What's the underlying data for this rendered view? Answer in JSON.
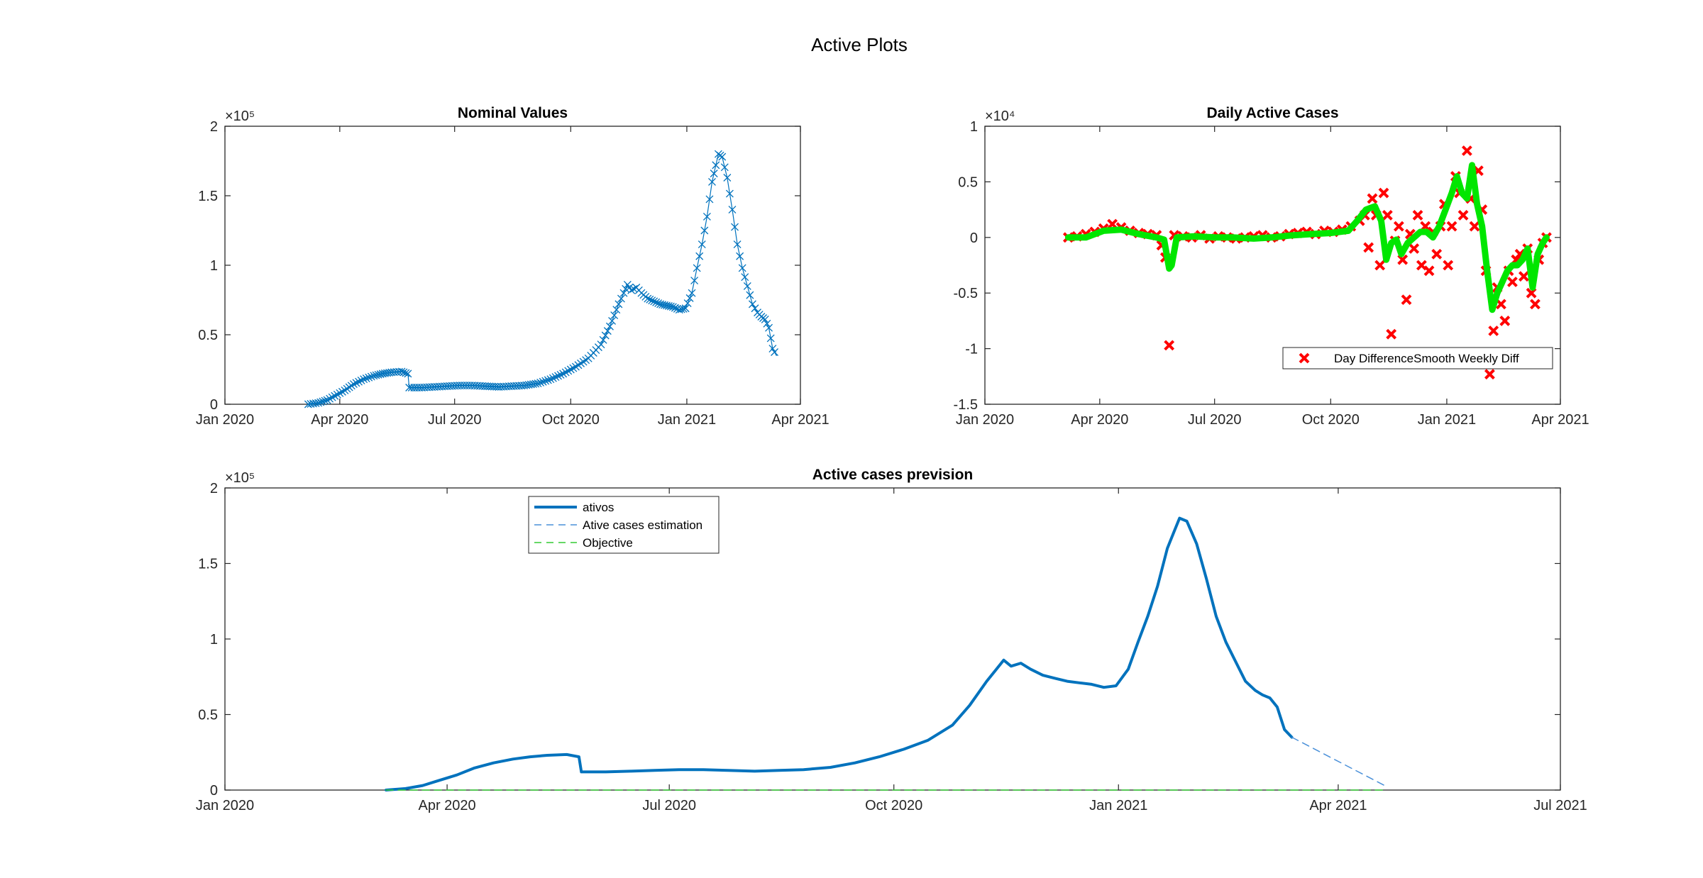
{
  "figure_title": "Active Plots",
  "chart_data": [
    {
      "type": "line",
      "marker": "x",
      "title": "Nominal Values",
      "xlabel": "",
      "ylabel": "",
      "xlim": [
        "2020-01-01",
        "2021-04-01"
      ],
      "ylim": [
        0,
        200000
      ],
      "x_ticks": [
        "2020-01-01",
        "2020-04-01",
        "2020-07-01",
        "2020-10-01",
        "2021-01-01",
        "2021-04-01"
      ],
      "x_tick_labels": [
        "Jan 2020",
        "Apr 2020",
        "Jul 2020",
        "Oct 2020",
        "Jan 2021",
        "Apr 2021"
      ],
      "y_ticks": [
        0,
        50000,
        100000,
        150000,
        200000
      ],
      "y_tick_labels": [
        "0",
        "0.5",
        "1",
        "1.5",
        "2"
      ],
      "y_exponent_label": "×10⁵",
      "grid": false,
      "color": "#0072BD",
      "series": [
        {
          "x": [
            "2020-03-07",
            "2020-03-15",
            "2020-03-22",
            "2020-03-28",
            "2020-04-05",
            "2020-04-12",
            "2020-04-20",
            "2020-04-28",
            "2020-05-05",
            "2020-05-12",
            "2020-05-20",
            "2020-05-25",
            "2020-05-26",
            "2020-06-05",
            "2020-06-15",
            "2020-06-25",
            "2020-07-05",
            "2020-07-15",
            "2020-07-25",
            "2020-08-05",
            "2020-08-15",
            "2020-08-25",
            "2020-09-05",
            "2020-09-15",
            "2020-09-25",
            "2020-10-05",
            "2020-10-15",
            "2020-10-25",
            "2020-11-01",
            "2020-11-08",
            "2020-11-12",
            "2020-11-15",
            "2020-11-18",
            "2020-11-22",
            "2020-11-26",
            "2020-12-01",
            "2020-12-06",
            "2020-12-11",
            "2020-12-16",
            "2020-12-21",
            "2020-12-26",
            "2020-12-31",
            "2021-01-05",
            "2021-01-09",
            "2021-01-13",
            "2021-01-17",
            "2021-01-21",
            "2021-01-24",
            "2021-01-26",
            "2021-01-29",
            "2021-02-02",
            "2021-02-06",
            "2021-02-10",
            "2021-02-14",
            "2021-02-18",
            "2021-02-22",
            "2021-02-26",
            "2021-03-01",
            "2021-03-04",
            "2021-03-07",
            "2021-03-10",
            "2021-03-13"
          ],
          "y": [
            0,
            1000,
            3000,
            6000,
            10000,
            14500,
            18000,
            20500,
            22000,
            23000,
            23500,
            22000,
            12000,
            12000,
            12500,
            13000,
            13500,
            13500,
            13000,
            12500,
            13000,
            13500,
            15000,
            18000,
            22000,
            27000,
            33000,
            43000,
            56000,
            72000,
            80000,
            86000,
            82000,
            84000,
            80000,
            76000,
            74000,
            72000,
            71000,
            70000,
            68000,
            69000,
            80000,
            98000,
            115000,
            135000,
            160000,
            172000,
            180000,
            178000,
            163000,
            140000,
            115000,
            98000,
            85000,
            72000,
            66000,
            63000,
            61000,
            55000,
            40000,
            35000
          ]
        }
      ]
    },
    {
      "type": "scatter",
      "title": "Daily Active Cases",
      "xlabel": "",
      "ylabel": "",
      "xlim": [
        "2020-01-01",
        "2021-04-01"
      ],
      "ylim": [
        -15000,
        10000
      ],
      "x_ticks": [
        "2020-01-01",
        "2020-04-01",
        "2020-07-01",
        "2020-10-01",
        "2021-01-01",
        "2021-04-01"
      ],
      "x_tick_labels": [
        "Jan 2020",
        "Apr 2020",
        "Jul 2020",
        "Oct 2020",
        "Jan 2021",
        "Apr 2021"
      ],
      "y_ticks": [
        -15000,
        -10000,
        -5000,
        0,
        5000,
        10000
      ],
      "y_tick_labels": [
        "-1.5",
        "-1",
        "-0.5",
        "0",
        "0.5",
        "1"
      ],
      "y_exponent_label": "×10⁴",
      "grid": false,
      "legend": {
        "position": "bottom-right",
        "entries": [
          "Day Difference",
          "Smooth Weekly Diff"
        ]
      },
      "series": [
        {
          "name": "Day Difference",
          "color": "#FF0000",
          "marker": "x",
          "x": [
            "2020-03-07",
            "2020-03-14",
            "2020-03-21",
            "2020-03-28",
            "2020-04-04",
            "2020-04-11",
            "2020-04-18",
            "2020-04-25",
            "2020-05-02",
            "2020-05-09",
            "2020-05-16",
            "2020-05-20",
            "2020-05-23",
            "2020-05-26",
            "2020-05-30",
            "2020-06-06",
            "2020-06-13",
            "2020-06-20",
            "2020-06-27",
            "2020-07-04",
            "2020-07-11",
            "2020-07-18",
            "2020-07-25",
            "2020-08-01",
            "2020-08-08",
            "2020-08-15",
            "2020-08-22",
            "2020-08-29",
            "2020-09-05",
            "2020-09-12",
            "2020-09-19",
            "2020-09-26",
            "2020-10-03",
            "2020-10-10",
            "2020-10-17",
            "2020-10-24",
            "2020-10-28",
            "2020-10-31",
            "2020-11-03",
            "2020-11-06",
            "2020-11-09",
            "2020-11-12",
            "2020-11-15",
            "2020-11-18",
            "2020-11-21",
            "2020-11-24",
            "2020-11-27",
            "2020-11-30",
            "2020-12-03",
            "2020-12-06",
            "2020-12-09",
            "2020-12-12",
            "2020-12-15",
            "2020-12-18",
            "2020-12-21",
            "2020-12-24",
            "2020-12-27",
            "2020-12-30",
            "2021-01-02",
            "2021-01-05",
            "2021-01-08",
            "2021-01-11",
            "2021-01-14",
            "2021-01-17",
            "2021-01-20",
            "2021-01-23",
            "2021-01-26",
            "2021-01-29",
            "2021-02-01",
            "2021-02-04",
            "2021-02-07",
            "2021-02-10",
            "2021-02-13",
            "2021-02-16",
            "2021-02-19",
            "2021-02-22",
            "2021-02-25",
            "2021-02-28",
            "2021-03-03",
            "2021-03-06",
            "2021-03-09",
            "2021-03-12",
            "2021-03-15",
            "2021-03-18",
            "2021-03-21"
          ],
          "y": [
            0,
            100,
            300,
            500,
            800,
            1200,
            900,
            600,
            400,
            300,
            200,
            -700,
            -1800,
            -9700,
            200,
            100,
            0,
            200,
            -100,
            100,
            0,
            -100,
            0,
            100,
            200,
            0,
            100,
            300,
            400,
            500,
            300,
            600,
            500,
            700,
            1000,
            1500,
            2000,
            -900,
            3500,
            2000,
            -2500,
            4000,
            2000,
            -8700,
            -300,
            1000,
            -2000,
            -5600,
            300,
            -1000,
            2000,
            -2500,
            1000,
            -3000,
            500,
            -1500,
            1000,
            3000,
            -2500,
            1000,
            5500,
            4000,
            2000,
            7800,
            3500,
            1000,
            6000,
            2500,
            -3000,
            -12300,
            -8400,
            -4500,
            -6000,
            -7500,
            -3000,
            -4000,
            -2000,
            -1500,
            -3500,
            -1000,
            -5000,
            -6000,
            -2000,
            -500,
            0
          ]
        },
        {
          "name": "Smooth Weekly Diff",
          "color": "#00E600",
          "x": [
            "2020-03-07",
            "2020-03-21",
            "2020-04-04",
            "2020-04-18",
            "2020-05-02",
            "2020-05-16",
            "2020-05-22",
            "2020-05-24",
            "2020-05-26",
            "2020-05-28",
            "2020-06-01",
            "2020-06-15",
            "2020-07-01",
            "2020-07-15",
            "2020-08-01",
            "2020-08-15",
            "2020-09-01",
            "2020-09-15",
            "2020-10-01",
            "2020-10-15",
            "2020-10-22",
            "2020-10-29",
            "2020-11-05",
            "2020-11-10",
            "2020-11-14",
            "2020-11-18",
            "2020-11-22",
            "2020-11-26",
            "2020-12-01",
            "2020-12-06",
            "2020-12-11",
            "2020-12-16",
            "2020-12-21",
            "2020-12-26",
            "2020-12-31",
            "2021-01-05",
            "2021-01-09",
            "2021-01-13",
            "2021-01-17",
            "2021-01-21",
            "2021-01-25",
            "2021-01-29",
            "2021-02-02",
            "2021-02-06",
            "2021-02-10",
            "2021-02-14",
            "2021-02-18",
            "2021-02-22",
            "2021-02-26",
            "2021-03-02",
            "2021-03-06",
            "2021-03-10",
            "2021-03-14",
            "2021-03-18",
            "2021-03-21"
          ],
          "y": [
            0,
            0,
            600,
            700,
            300,
            0,
            -200,
            -1500,
            -2800,
            -2500,
            0,
            100,
            0,
            0,
            -100,
            0,
            200,
            300,
            400,
            600,
            1500,
            2500,
            2800,
            1500,
            -2000,
            -500,
            -200,
            -1500,
            -500,
            0,
            500,
            500,
            0,
            1000,
            2500,
            4000,
            5500,
            4000,
            3500,
            6500,
            3000,
            1000,
            -3000,
            -6500,
            -5000,
            -4000,
            -3000,
            -2500,
            -2500,
            -2000,
            -1000,
            -4500,
            -1500,
            -500,
            0
          ]
        }
      ]
    },
    {
      "type": "line",
      "title": "Active cases prevision",
      "xlabel": "",
      "ylabel": "",
      "xlim": [
        "2020-01-01",
        "2021-07-01"
      ],
      "ylim": [
        0,
        200000
      ],
      "x_ticks": [
        "2020-01-01",
        "2020-04-01",
        "2020-07-01",
        "2020-10-01",
        "2021-01-01",
        "2021-04-01",
        "2021-07-01"
      ],
      "x_tick_labels": [
        "Jan 2020",
        "Apr 2020",
        "Jul 2020",
        "Oct 2020",
        "Jan 2021",
        "Apr 2021",
        "Jul 2021"
      ],
      "y_ticks": [
        0,
        50000,
        100000,
        150000,
        200000
      ],
      "y_tick_labels": [
        "0",
        "0.5",
        "1",
        "1.5",
        "2"
      ],
      "y_exponent_label": "×10⁵",
      "grid": false,
      "legend": {
        "position": "top-left",
        "entries": [
          "ativos",
          "Ative cases estimation",
          "Objective"
        ]
      },
      "series": [
        {
          "name": "ativos",
          "color": "#0072BD",
          "style": "solid",
          "x": [
            "2020-03-07",
            "2020-03-15",
            "2020-03-22",
            "2020-03-28",
            "2020-04-05",
            "2020-04-12",
            "2020-04-20",
            "2020-04-28",
            "2020-05-05",
            "2020-05-12",
            "2020-05-20",
            "2020-05-25",
            "2020-05-26",
            "2020-06-05",
            "2020-06-15",
            "2020-06-25",
            "2020-07-05",
            "2020-07-15",
            "2020-07-25",
            "2020-08-05",
            "2020-08-15",
            "2020-08-25",
            "2020-09-05",
            "2020-09-15",
            "2020-09-25",
            "2020-10-05",
            "2020-10-15",
            "2020-10-25",
            "2020-11-01",
            "2020-11-08",
            "2020-11-12",
            "2020-11-15",
            "2020-11-18",
            "2020-11-22",
            "2020-11-26",
            "2020-12-01",
            "2020-12-06",
            "2020-12-11",
            "2020-12-16",
            "2020-12-21",
            "2020-12-26",
            "2020-12-31",
            "2021-01-05",
            "2021-01-09",
            "2021-01-13",
            "2021-01-17",
            "2021-01-21",
            "2021-01-24",
            "2021-01-26",
            "2021-01-29",
            "2021-02-02",
            "2021-02-06",
            "2021-02-10",
            "2021-02-14",
            "2021-02-18",
            "2021-02-22",
            "2021-02-26",
            "2021-03-01",
            "2021-03-04",
            "2021-03-07",
            "2021-03-10",
            "2021-03-13"
          ],
          "y": [
            0,
            1000,
            3000,
            6000,
            10000,
            14500,
            18000,
            20500,
            22000,
            23000,
            23500,
            22000,
            12000,
            12000,
            12500,
            13000,
            13500,
            13500,
            13000,
            12500,
            13000,
            13500,
            15000,
            18000,
            22000,
            27000,
            33000,
            43000,
            56000,
            72000,
            80000,
            86000,
            82000,
            84000,
            80000,
            76000,
            74000,
            72000,
            71000,
            70000,
            68000,
            69000,
            80000,
            98000,
            115000,
            135000,
            160000,
            172000,
            180000,
            178000,
            163000,
            140000,
            115000,
            98000,
            85000,
            72000,
            66000,
            63000,
            61000,
            55000,
            40000,
            35000
          ]
        },
        {
          "name": "Ative cases estimation",
          "color": "#4A90D9",
          "style": "dashed",
          "x": [
            "2021-03-13",
            "2021-04-20"
          ],
          "y": [
            35000,
            3000
          ]
        },
        {
          "name": "Objective",
          "color": "#33CC33",
          "style": "dashed",
          "x": [
            "2020-03-07",
            "2021-04-20"
          ],
          "y": [
            0,
            0
          ]
        }
      ]
    }
  ]
}
